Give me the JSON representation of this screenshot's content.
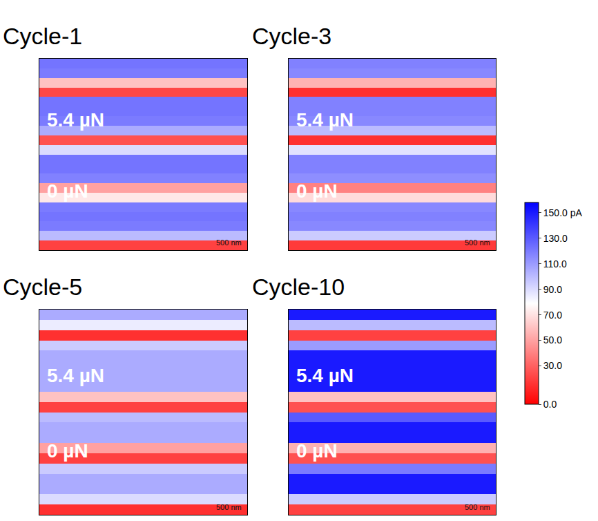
{
  "chart_data": {
    "type": "heatmap",
    "tick_labels": false,
    "colors": [
      "#ff0000",
      "#ffffff",
      "#0000ff"
    ],
    "colorbar": {
      "range": [
        0,
        158
      ],
      "ticks": [
        {
          "value": 150,
          "label": "150.0 pA"
        },
        {
          "value": 130,
          "label": "130.0"
        },
        {
          "value": 110,
          "label": "110.0"
        },
        {
          "value": 90,
          "label": "90.0"
        },
        {
          "value": 70,
          "label": "70.0"
        },
        {
          "value": 50,
          "label": "50.0"
        },
        {
          "value": 30,
          "label": "30.0"
        },
        {
          "value": 0,
          "label": "0.0"
        }
      ]
    },
    "panels": [
      {
        "title": "Cycle-1",
        "annotations": [
          "5.4 µN",
          "0 µN"
        ],
        "scale_bar": "500 nm",
        "cells": [
          [
            122
          ],
          [
            120
          ],
          [
            60
          ],
          [
            22
          ],
          [
            122
          ],
          [
            122
          ],
          [
            120
          ],
          [
            105
          ],
          [
            25
          ],
          [
            90
          ],
          [
            122
          ],
          [
            122
          ],
          [
            118
          ],
          [
            50
          ],
          [
            72
          ],
          [
            120
          ],
          [
            122
          ],
          [
            120
          ],
          [
            100
          ],
          [
            20
          ]
        ]
      },
      {
        "title": "Cycle-3",
        "annotations": [
          "5.4 µN",
          "0 µN"
        ],
        "scale_bar": "500 nm",
        "cells": [
          [
            118
          ],
          [
            116
          ],
          [
            55
          ],
          [
            15
          ],
          [
            118
          ],
          [
            118
          ],
          [
            116
          ],
          [
            100
          ],
          [
            15
          ],
          [
            88
          ],
          [
            118
          ],
          [
            118
          ],
          [
            114
          ],
          [
            40
          ],
          [
            68
          ],
          [
            116
          ],
          [
            118
          ],
          [
            116
          ],
          [
            95
          ],
          [
            18
          ]
        ]
      },
      {
        "title": "Cycle-5",
        "annotations": [
          "5.4 µN",
          "0 µN"
        ],
        "scale_bar": "500 nm",
        "cells": [
          [
            105
          ],
          [
            85
          ],
          [
            15
          ],
          [
            95
          ],
          [
            105
          ],
          [
            105
          ],
          [
            105
          ],
          [
            105
          ],
          [
            60
          ],
          [
            20
          ],
          [
            100
          ],
          [
            105
          ],
          [
            105
          ],
          [
            50
          ],
          [
            20
          ],
          [
            95
          ],
          [
            105
          ],
          [
            105
          ],
          [
            90
          ],
          [
            15
          ]
        ]
      },
      {
        "title": "Cycle-10",
        "annotations": [
          "5.4 µN",
          "0 µN"
        ],
        "scale_bar": "500 nm",
        "cells": [
          [
            150
          ],
          [
            100
          ],
          [
            20
          ],
          [
            110
          ],
          [
            150
          ],
          [
            150
          ],
          [
            150
          ],
          [
            150
          ],
          [
            60
          ],
          [
            25
          ],
          [
            130
          ],
          [
            150
          ],
          [
            150
          ],
          [
            55
          ],
          [
            25
          ],
          [
            120
          ],
          [
            150
          ],
          [
            150
          ],
          [
            95
          ],
          [
            20
          ]
        ]
      }
    ]
  }
}
